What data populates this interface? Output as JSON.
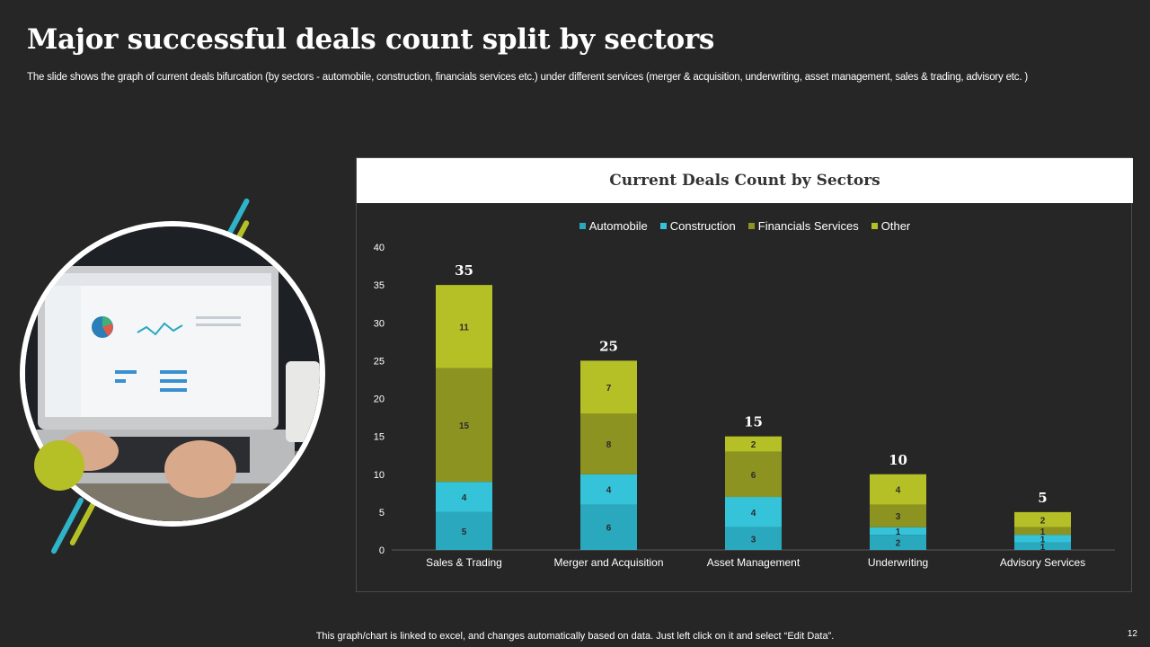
{
  "page": {
    "title": "Major successful deals count split by sectors",
    "subtitle": "The slide shows the graph of current deals bifurcation (by sectors - automobile, construction, financials services etc.) under different services (merger & acquisition, underwriting, asset management, sales & trading, advisory etc. )",
    "footer": "This graph/chart is linked to excel,  and changes automatically based on data. Just left click on it and select “Edit Data”.",
    "page_number": "12"
  },
  "colors": {
    "Automobile": "#2aa8be",
    "Construction": "#34c3d9",
    "Financials Services": "#8c9321",
    "Other": "#b5bf26"
  },
  "chart_data": {
    "type": "bar",
    "stacked": true,
    "title": "Current Deals Count by Sectors",
    "categories": [
      "Sales & Trading",
      "Merger and Acquisition",
      "Asset Management",
      "Underwriting",
      "Advisory Services"
    ],
    "series": [
      {
        "name": "Automobile",
        "values": [
          5,
          6,
          3,
          2,
          1
        ]
      },
      {
        "name": "Construction",
        "values": [
          4,
          4,
          4,
          1,
          1
        ]
      },
      {
        "name": "Financials Services",
        "values": [
          15,
          8,
          6,
          3,
          1
        ]
      },
      {
        "name": "Other",
        "values": [
          11,
          7,
          2,
          4,
          2
        ]
      }
    ],
    "totals": [
      35,
      25,
      15,
      10,
      5
    ],
    "ylim": [
      0,
      40
    ],
    "yticks": [
      0,
      5,
      10,
      15,
      20,
      25,
      30,
      35,
      40
    ],
    "legend": "top",
    "grid": false
  }
}
